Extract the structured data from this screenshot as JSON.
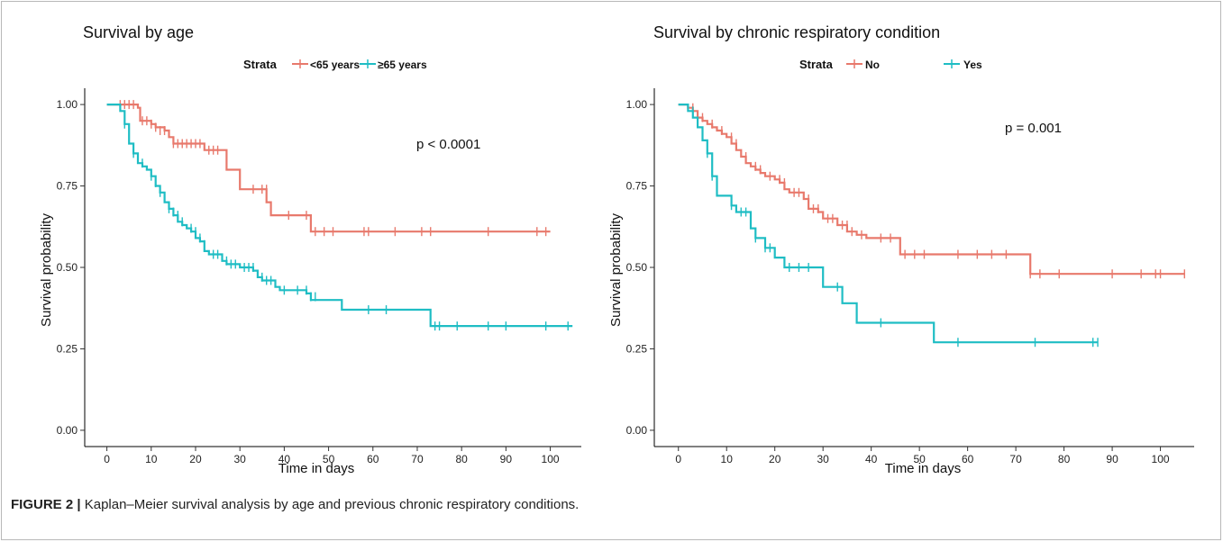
{
  "figure": {
    "caption_label": "FIGURE 2 |",
    "caption_text": "Kaplan–Meier survival analysis by age and previous chronic respiratory conditions."
  },
  "chart_data": [
    {
      "type": "line",
      "subtype": "kaplan-meier step",
      "title": "Survival by age",
      "xlabel": "Time in days",
      "ylabel": "Survival probability",
      "xlim": [
        -5,
        107
      ],
      "ylim": [
        -0.05,
        1.05
      ],
      "xticks": [
        "0",
        "10",
        "20",
        "30",
        "40",
        "50",
        "60",
        "70",
        "80",
        "90",
        "100"
      ],
      "yticks": [
        "0.00",
        "0.25",
        "0.50",
        "0.75",
        "1.00"
      ],
      "grid": false,
      "legend": {
        "title": "Strata",
        "position": "top"
      },
      "annotation": "p < 0.0001",
      "series": [
        {
          "name": "<65 years",
          "color": "#E8796C",
          "steps": [
            [
              0,
              1.0
            ],
            [
              7,
              0.99
            ],
            [
              7.5,
              0.95
            ],
            [
              10,
              0.94
            ],
            [
              11,
              0.93
            ],
            [
              13,
              0.92
            ],
            [
              14,
              0.9
            ],
            [
              15,
              0.88
            ],
            [
              22,
              0.86
            ],
            [
              27,
              0.8
            ],
            [
              30,
              0.74
            ],
            [
              36,
              0.7
            ],
            [
              37,
              0.66
            ],
            [
              46,
              0.61
            ],
            [
              100,
              0.61
            ]
          ],
          "censors": [
            [
              3,
              1.0
            ],
            [
              4,
              1.0
            ],
            [
              5,
              1.0
            ],
            [
              6,
              1.0
            ],
            [
              8,
              0.95
            ],
            [
              9,
              0.95
            ],
            [
              10,
              0.94
            ],
            [
              11,
              0.93
            ],
            [
              12,
              0.92
            ],
            [
              13,
              0.92
            ],
            [
              15,
              0.88
            ],
            [
              16,
              0.88
            ],
            [
              17,
              0.88
            ],
            [
              18,
              0.88
            ],
            [
              19,
              0.88
            ],
            [
              20,
              0.88
            ],
            [
              21,
              0.88
            ],
            [
              23,
              0.86
            ],
            [
              24,
              0.86
            ],
            [
              25,
              0.86
            ],
            [
              33,
              0.74
            ],
            [
              35,
              0.74
            ],
            [
              36,
              0.74
            ],
            [
              41,
              0.66
            ],
            [
              45,
              0.66
            ],
            [
              47,
              0.61
            ],
            [
              49,
              0.61
            ],
            [
              51,
              0.61
            ],
            [
              58,
              0.61
            ],
            [
              59,
              0.61
            ],
            [
              65,
              0.61
            ],
            [
              71,
              0.61
            ],
            [
              73,
              0.61
            ],
            [
              86,
              0.61
            ],
            [
              97,
              0.61
            ],
            [
              99,
              0.61
            ]
          ]
        },
        {
          "name": "≥65 years",
          "color": "#1FBDC4",
          "steps": [
            [
              0,
              1.0
            ],
            [
              3,
              0.98
            ],
            [
              4,
              0.94
            ],
            [
              5,
              0.88
            ],
            [
              6,
              0.85
            ],
            [
              7,
              0.82
            ],
            [
              8,
              0.81
            ],
            [
              9,
              0.8
            ],
            [
              10,
              0.78
            ],
            [
              11,
              0.75
            ],
            [
              12,
              0.73
            ],
            [
              13,
              0.7
            ],
            [
              14,
              0.68
            ],
            [
              15,
              0.66
            ],
            [
              16,
              0.64
            ],
            [
              17,
              0.63
            ],
            [
              18,
              0.62
            ],
            [
              19,
              0.61
            ],
            [
              20,
              0.59
            ],
            [
              21,
              0.58
            ],
            [
              22,
              0.55
            ],
            [
              23,
              0.54
            ],
            [
              26,
              0.52
            ],
            [
              27,
              0.51
            ],
            [
              30,
              0.5
            ],
            [
              33,
              0.49
            ],
            [
              34,
              0.47
            ],
            [
              35,
              0.46
            ],
            [
              38,
              0.44
            ],
            [
              39,
              0.43
            ],
            [
              45,
              0.42
            ],
            [
              46,
              0.4
            ],
            [
              53,
              0.37
            ],
            [
              73,
              0.32
            ],
            [
              105,
              0.32
            ]
          ],
          "censors": [
            [
              4,
              0.94
            ],
            [
              6,
              0.85
            ],
            [
              8,
              0.82
            ],
            [
              10,
              0.78
            ],
            [
              11,
              0.76
            ],
            [
              12,
              0.73
            ],
            [
              14,
              0.68
            ],
            [
              15,
              0.67
            ],
            [
              16,
              0.66
            ],
            [
              17,
              0.64
            ],
            [
              19,
              0.62
            ],
            [
              20,
              0.61
            ],
            [
              21,
              0.59
            ],
            [
              22,
              0.57
            ],
            [
              24,
              0.54
            ],
            [
              25,
              0.54
            ],
            [
              27,
              0.52
            ],
            [
              28,
              0.51
            ],
            [
              29,
              0.51
            ],
            [
              31,
              0.5
            ],
            [
              32,
              0.5
            ],
            [
              33,
              0.5
            ],
            [
              35,
              0.47
            ],
            [
              36,
              0.46
            ],
            [
              37,
              0.46
            ],
            [
              40,
              0.43
            ],
            [
              43,
              0.43
            ],
            [
              45,
              0.43
            ],
            [
              46,
              0.41
            ],
            [
              47,
              0.41
            ],
            [
              59,
              0.37
            ],
            [
              63,
              0.37
            ],
            [
              74,
              0.32
            ],
            [
              75,
              0.32
            ],
            [
              79,
              0.32
            ],
            [
              86,
              0.32
            ],
            [
              90,
              0.32
            ],
            [
              99,
              0.32
            ],
            [
              104,
              0.32
            ]
          ]
        }
      ]
    },
    {
      "type": "line",
      "subtype": "kaplan-meier step",
      "title": "Survival by chronic respiratory condition",
      "xlabel": "Time in days",
      "ylabel": "Survival probability",
      "xlim": [
        -5,
        107
      ],
      "ylim": [
        -0.05,
        1.05
      ],
      "xticks": [
        "0",
        "10",
        "20",
        "30",
        "40",
        "50",
        "60",
        "70",
        "80",
        "90",
        "100"
      ],
      "yticks": [
        "0.00",
        "0.25",
        "0.50",
        "0.75",
        "1.00"
      ],
      "grid": false,
      "legend": {
        "title": "Strata",
        "position": "top"
      },
      "annotation": "p = 0.001",
      "series": [
        {
          "name": "No",
          "color": "#E8796C",
          "steps": [
            [
              0,
              1.0
            ],
            [
              2,
              0.99
            ],
            [
              3,
              0.98
            ],
            [
              4,
              0.96
            ],
            [
              5,
              0.95
            ],
            [
              6,
              0.94
            ],
            [
              7,
              0.93
            ],
            [
              8,
              0.92
            ],
            [
              9,
              0.91
            ],
            [
              10,
              0.9
            ],
            [
              11,
              0.88
            ],
            [
              12,
              0.86
            ],
            [
              13,
              0.84
            ],
            [
              14,
              0.82
            ],
            [
              15,
              0.81
            ],
            [
              16,
              0.8
            ],
            [
              17,
              0.79
            ],
            [
              18,
              0.78
            ],
            [
              20,
              0.77
            ],
            [
              21,
              0.76
            ],
            [
              22,
              0.74
            ],
            [
              23,
              0.73
            ],
            [
              26,
              0.71
            ],
            [
              27,
              0.68
            ],
            [
              29,
              0.67
            ],
            [
              30,
              0.65
            ],
            [
              33,
              0.63
            ],
            [
              35,
              0.61
            ],
            [
              37,
              0.6
            ],
            [
              39,
              0.59
            ],
            [
              46,
              0.54
            ],
            [
              73,
              0.48
            ],
            [
              105,
              0.48
            ]
          ],
          "censors": [
            [
              3,
              0.99
            ],
            [
              5,
              0.96
            ],
            [
              7,
              0.94
            ],
            [
              9,
              0.92
            ],
            [
              11,
              0.9
            ],
            [
              12,
              0.88
            ],
            [
              14,
              0.84
            ],
            [
              16,
              0.81
            ],
            [
              17,
              0.8
            ],
            [
              19,
              0.78
            ],
            [
              21,
              0.77
            ],
            [
              22,
              0.76
            ],
            [
              24,
              0.73
            ],
            [
              25,
              0.73
            ],
            [
              27,
              0.71
            ],
            [
              28,
              0.68
            ],
            [
              29,
              0.68
            ],
            [
              31,
              0.65
            ],
            [
              32,
              0.65
            ],
            [
              34,
              0.63
            ],
            [
              35,
              0.63
            ],
            [
              36,
              0.61
            ],
            [
              38,
              0.6
            ],
            [
              42,
              0.59
            ],
            [
              44,
              0.59
            ],
            [
              47,
              0.54
            ],
            [
              49,
              0.54
            ],
            [
              51,
              0.54
            ],
            [
              58,
              0.54
            ],
            [
              62,
              0.54
            ],
            [
              65,
              0.54
            ],
            [
              68,
              0.54
            ],
            [
              73,
              0.48
            ],
            [
              75,
              0.48
            ],
            [
              79,
              0.48
            ],
            [
              90,
              0.48
            ],
            [
              96,
              0.48
            ],
            [
              99,
              0.48
            ],
            [
              100,
              0.48
            ],
            [
              105,
              0.48
            ]
          ]
        },
        {
          "name": "Yes",
          "color": "#1FBDC4",
          "steps": [
            [
              0,
              1.0
            ],
            [
              2,
              0.98
            ],
            [
              3,
              0.96
            ],
            [
              4,
              0.93
            ],
            [
              5,
              0.89
            ],
            [
              6,
              0.85
            ],
            [
              7,
              0.78
            ],
            [
              8,
              0.72
            ],
            [
              11,
              0.69
            ],
            [
              12,
              0.67
            ],
            [
              15,
              0.62
            ],
            [
              16,
              0.59
            ],
            [
              18,
              0.56
            ],
            [
              20,
              0.53
            ],
            [
              22,
              0.5
            ],
            [
              30,
              0.44
            ],
            [
              34,
              0.39
            ],
            [
              37,
              0.33
            ],
            [
              53,
              0.27
            ],
            [
              87,
              0.27
            ]
          ],
          "censors": [
            [
              3,
              0.98
            ],
            [
              6,
              0.85
            ],
            [
              7,
              0.78
            ],
            [
              11,
              0.69
            ],
            [
              13,
              0.67
            ],
            [
              14,
              0.67
            ],
            [
              16,
              0.59
            ],
            [
              18,
              0.56
            ],
            [
              19,
              0.56
            ],
            [
              23,
              0.5
            ],
            [
              25,
              0.5
            ],
            [
              27,
              0.5
            ],
            [
              33,
              0.44
            ],
            [
              42,
              0.33
            ],
            [
              58,
              0.27
            ],
            [
              74,
              0.27
            ],
            [
              86,
              0.27
            ],
            [
              87,
              0.27
            ]
          ]
        }
      ]
    }
  ]
}
